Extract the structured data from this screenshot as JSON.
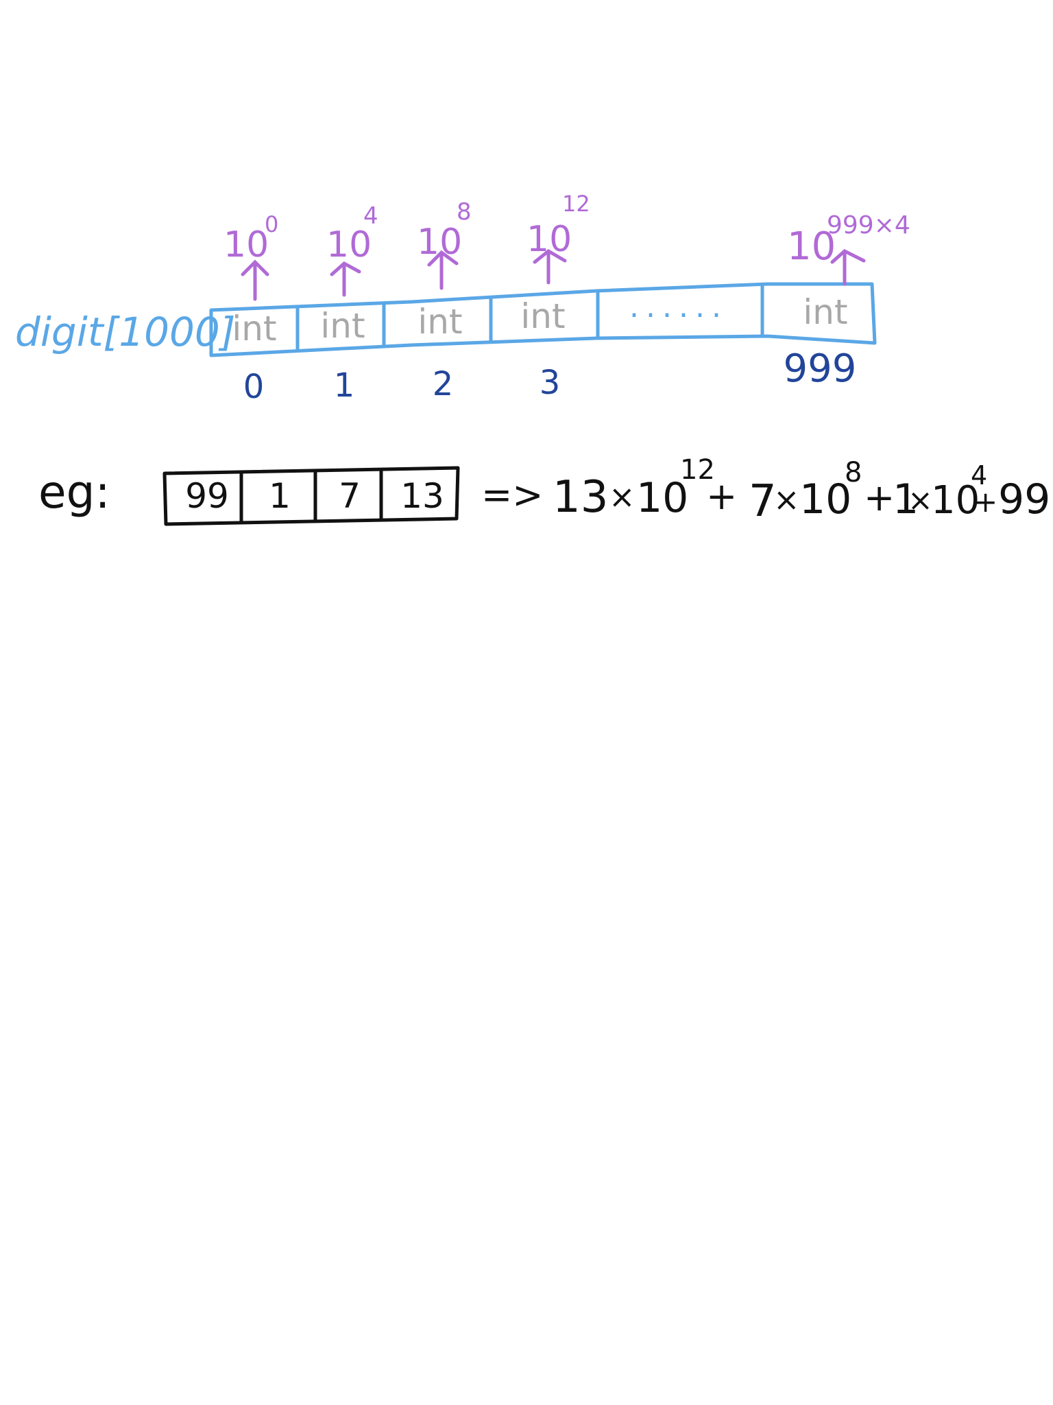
{
  "colors": {
    "array_blue": "#5aa7e6",
    "power_purple": "#b06ad6",
    "index_navy": "#22459a",
    "cell_grey": "#a8a8a8",
    "ink_black": "#111111"
  },
  "array_diagram": {
    "array_label": "digit[1000]",
    "cells": [
      {
        "type": "int",
        "index": "0",
        "power_base": "10",
        "power_exp": "0"
      },
      {
        "type": "int",
        "index": "1",
        "power_base": "10",
        "power_exp": "4"
      },
      {
        "type": "int",
        "index": "2",
        "power_base": "10",
        "power_exp": "8"
      },
      {
        "type": "int",
        "index": "3",
        "power_base": "10",
        "power_exp": "12"
      },
      {
        "type": "......",
        "index": "",
        "power_base": "",
        "power_exp": ""
      },
      {
        "type": "int",
        "index": "999",
        "power_base": "10",
        "power_exp": "999×4"
      }
    ]
  },
  "example": {
    "label": "eg:",
    "cells": [
      "99",
      "1",
      "7",
      "13"
    ],
    "arrow": "=>",
    "expression": {
      "t1_coef": "13",
      "t1_times": "×",
      "t1_base": "10",
      "t1_exp": "12",
      "plus1": "+",
      "t2_coef": "7",
      "t2_times": "×",
      "t2_base": "10",
      "t2_exp": "8",
      "plus2": "+",
      "t3_coef": "1",
      "t3_times": "×",
      "t3_base": "10",
      "t3_exp": "4",
      "plus3": "+",
      "t4": "99"
    }
  }
}
